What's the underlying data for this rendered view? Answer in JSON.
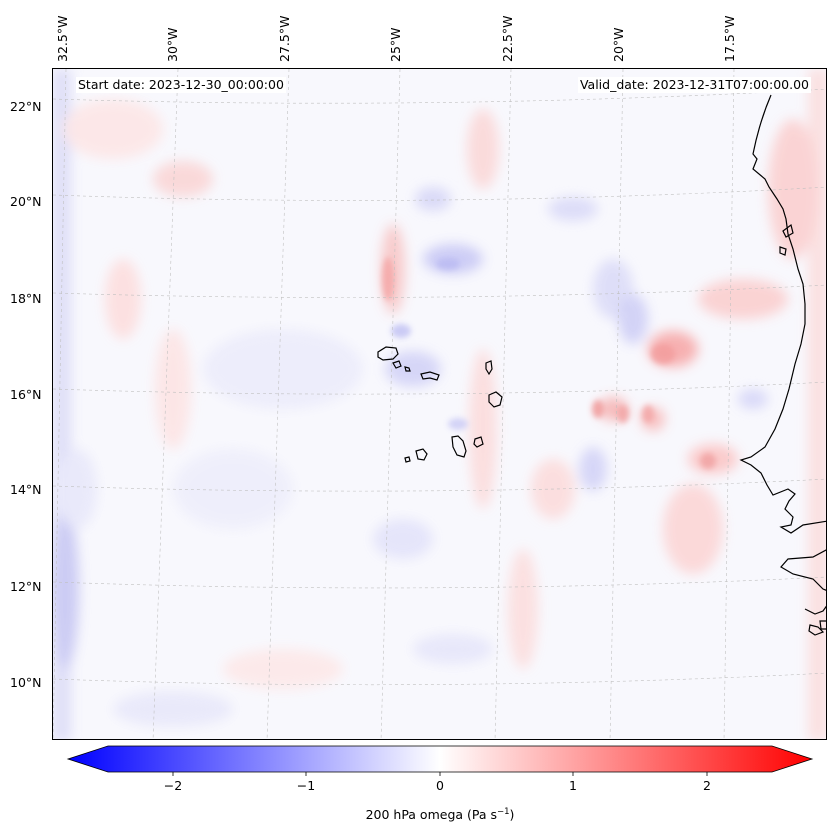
{
  "header": {
    "start_date": "Start date: 2023-12-30_00:00:00",
    "valid_date": "Valid_date: 2023-12-31T07:00:00.00"
  },
  "axes": {
    "longitude_labels": [
      "32.5°W",
      "30°W",
      "27.5°W",
      "25°W",
      "22.5°W",
      "20°W",
      "17.5°W"
    ],
    "latitude_labels": [
      "22°N",
      "20°N",
      "18°N",
      "16°N",
      "14°N",
      "12°N",
      "10°N"
    ]
  },
  "colorbar": {
    "ticks": [
      "−2",
      "−1",
      "0",
      "1",
      "2"
    ],
    "label_main": "200 hPa omega (Pa s",
    "label_sup": "−1",
    "label_end": ")",
    "min_color": "#0000ff",
    "mid_color": "#ffffff",
    "max_color": "#ff0000"
  },
  "map": {
    "coastline_color": "#000000",
    "gridline_color": "#b0b0b0",
    "field_description": "omega"
  }
}
